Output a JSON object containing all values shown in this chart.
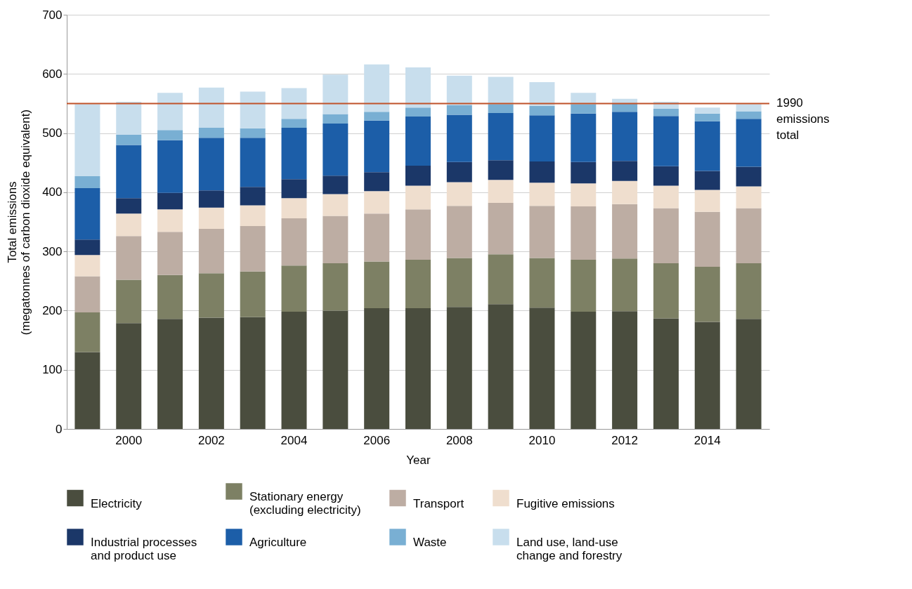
{
  "chart_data": {
    "type": "bar",
    "stacked": true,
    "xlabel": "Year",
    "ylabel": "Total emissions (megatonnes of carbon dioxide equivalent)",
    "categories": [
      null,
      "2000",
      null,
      "2002",
      null,
      "2004",
      null,
      "2006",
      null,
      "2008",
      null,
      "2010",
      null,
      "2012",
      null,
      "2014",
      null
    ],
    "series": [
      {
        "name": "Electricity",
        "color": "#4a4d3e",
        "values": [
          130,
          179,
          186,
          188,
          189,
          198,
          200,
          204,
          204,
          206,
          211,
          205,
          198,
          199,
          187,
          181,
          186
        ]
      },
      {
        "name": "Stationary energy (excluding electricity)",
        "color": "#7d8064",
        "values": [
          67,
          73,
          74,
          75,
          77,
          78,
          80,
          79,
          82,
          83,
          84,
          84,
          88,
          89,
          93,
          93,
          94
        ]
      },
      {
        "name": "Transport",
        "color": "#bdada3",
        "values": [
          61,
          74,
          73,
          75,
          77,
          80,
          80,
          81,
          85,
          88,
          87,
          88,
          90,
          92,
          93,
          93,
          93
        ]
      },
      {
        "name": "Fugitive emissions",
        "color": "#efdece",
        "values": [
          36,
          38,
          38,
          36,
          35,
          34,
          37,
          38,
          40,
          40,
          39,
          39,
          39,
          39,
          38,
          37,
          37
        ]
      },
      {
        "name": "Industrial processes and product use",
        "color": "#1b3768",
        "values": [
          26,
          26,
          28,
          29,
          31,
          32,
          31,
          32,
          34,
          34,
          33,
          36,
          36,
          34,
          33,
          32,
          33
        ]
      },
      {
        "name": "Agriculture",
        "color": "#1c5ea8",
        "values": [
          87,
          90,
          89,
          89,
          83,
          87,
          88,
          87,
          83,
          80,
          80,
          78,
          82,
          83,
          85,
          84,
          81
        ]
      },
      {
        "name": "Waste",
        "color": "#79afd3",
        "values": [
          20,
          17,
          17,
          17,
          16,
          15,
          16,
          15,
          15,
          16,
          15,
          16,
          16,
          15,
          12,
          13,
          13
        ]
      },
      {
        "name": "Land use, land-use change and forestry",
        "color": "#c8deed",
        "values": [
          122,
          56,
          63,
          68,
          62,
          52,
          67,
          80,
          68,
          50,
          46,
          40,
          19,
          7,
          12,
          10,
          12
        ]
      }
    ],
    "ylim": [
      0,
      700
    ],
    "yticks": [
      0,
      100,
      200,
      300,
      400,
      500,
      600,
      700
    ],
    "grid": "y",
    "legend": "bottom",
    "ref_lines": [
      {
        "axis": "y",
        "value": 550,
        "label": "1990 emissions total",
        "color": "#c0532a"
      }
    ]
  }
}
